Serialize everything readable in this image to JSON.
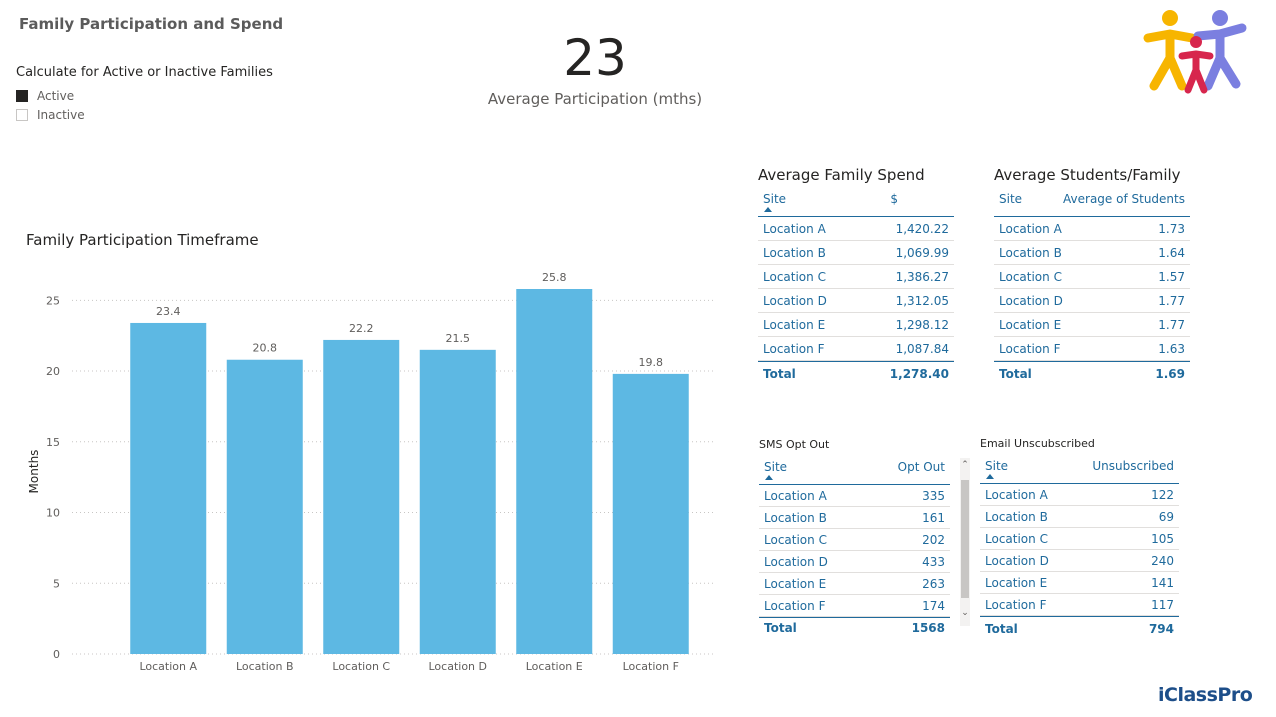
{
  "report": {
    "title": "Family Participation and Spend",
    "brand": "iClassPro"
  },
  "slicer": {
    "title": "Calculate for Active or Inactive Families",
    "options": [
      {
        "label": "Active",
        "checked": true
      },
      {
        "label": "Inactive",
        "checked": false
      }
    ]
  },
  "kpi": {
    "value": "23",
    "label": "Average Participation (mths)"
  },
  "chart_data": {
    "type": "bar",
    "title": "Family Participation Timeframe",
    "xlabel": "",
    "ylabel": "Months",
    "categories": [
      "Location A",
      "Location B",
      "Location C",
      "Location D",
      "Location E",
      "Location F"
    ],
    "values": [
      23.4,
      20.8,
      22.2,
      21.5,
      25.8,
      19.8
    ],
    "ylim": [
      0,
      25.8
    ],
    "yticks": [
      0,
      5,
      10,
      15,
      20,
      25
    ],
    "grid": true,
    "color": "#5db8e3"
  },
  "spend_table": {
    "title": "Average Family Spend",
    "headers": [
      "Site",
      "$"
    ],
    "rows": [
      [
        "Location A",
        "1,420.22"
      ],
      [
        "Location B",
        "1,069.99"
      ],
      [
        "Location C",
        "1,386.27"
      ],
      [
        "Location D",
        "1,312.05"
      ],
      [
        "Location E",
        "1,298.12"
      ],
      [
        "Location F",
        "1,087.84"
      ]
    ],
    "total": [
      "Total",
      "1,278.40"
    ]
  },
  "students_table": {
    "title": "Average Students/Family",
    "headers": [
      "Site",
      "Average of Students"
    ],
    "rows": [
      [
        "Location A",
        "1.73"
      ],
      [
        "Location B",
        "1.64"
      ],
      [
        "Location C",
        "1.57"
      ],
      [
        "Location D",
        "1.77"
      ],
      [
        "Location E",
        "1.77"
      ],
      [
        "Location F",
        "1.63"
      ]
    ],
    "total": [
      "Total",
      "1.69"
    ]
  },
  "sms_table": {
    "title": "SMS Opt Out",
    "headers": [
      "Site",
      "Opt Out"
    ],
    "rows": [
      [
        "Location A",
        "335"
      ],
      [
        "Location B",
        "161"
      ],
      [
        "Location C",
        "202"
      ],
      [
        "Location D",
        "433"
      ],
      [
        "Location E",
        "263"
      ],
      [
        "Location F",
        "174"
      ]
    ],
    "total": [
      "Total",
      "1568"
    ]
  },
  "email_table": {
    "title": "Email Unscubscribed",
    "headers": [
      "Site",
      "Unsubscribed"
    ],
    "rows": [
      [
        "Location A",
        "122"
      ],
      [
        "Location B",
        "69"
      ],
      [
        "Location C",
        "105"
      ],
      [
        "Location D",
        "240"
      ],
      [
        "Location E",
        "141"
      ],
      [
        "Location F",
        "117"
      ]
    ],
    "total": [
      "Total",
      "794"
    ]
  },
  "colors": {
    "accent": "#1f6a9c",
    "bar": "#5db8e3",
    "brand": "#1d4e89"
  }
}
